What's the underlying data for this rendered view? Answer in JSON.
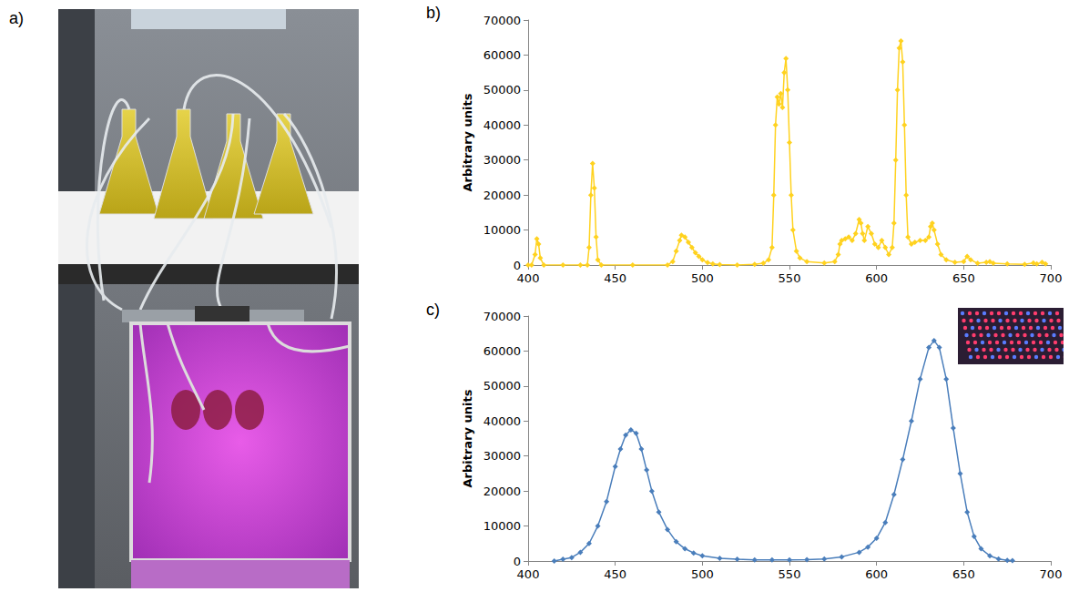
{
  "photo": {
    "panel": "a)"
  },
  "chart_data": [
    {
      "type": "line",
      "panel": "b)",
      "ylabel": "Arbitrary units",
      "color": "#ffd21f",
      "marker": "diamond",
      "xlim": [
        400,
        700
      ],
      "xticks": [
        400,
        450,
        500,
        550,
        600,
        650,
        700
      ],
      "ylim": [
        0,
        70000
      ],
      "yticks": [
        0,
        10000,
        20000,
        30000,
        40000,
        50000,
        60000,
        70000
      ],
      "grid": false,
      "x": [
        400,
        402,
        404,
        405,
        406,
        407,
        409,
        420,
        430,
        434,
        435,
        436,
        437,
        438,
        439,
        440,
        442,
        460,
        480,
        483,
        485,
        487,
        488,
        490,
        492,
        494,
        496,
        498,
        500,
        503,
        506,
        510,
        520,
        530,
        535,
        538,
        540,
        541,
        542,
        543,
        544,
        545,
        546,
        547,
        548,
        549,
        550,
        551,
        552,
        554,
        556,
        560,
        570,
        576,
        578,
        579,
        580,
        582,
        584,
        586,
        588,
        590,
        591,
        592,
        593,
        595,
        597,
        599,
        601,
        603,
        605,
        607,
        609,
        610,
        611,
        612,
        613,
        614,
        615,
        616,
        617,
        618,
        620,
        622,
        625,
        628,
        630,
        631,
        632,
        633,
        635,
        637,
        640,
        645,
        650,
        652,
        654,
        658,
        663,
        665,
        667,
        675,
        685,
        690,
        692,
        695,
        697
      ],
      "values": [
        0,
        0,
        3000,
        7500,
        6000,
        2000,
        0,
        0,
        0,
        0,
        5000,
        20000,
        29000,
        22000,
        8000,
        1500,
        0,
        0,
        0,
        1000,
        4000,
        7000,
        8500,
        8000,
        6500,
        5000,
        3500,
        2500,
        1500,
        700,
        300,
        100,
        0,
        200,
        500,
        1500,
        5000,
        20000,
        40000,
        48000,
        46000,
        49000,
        45000,
        55000,
        59000,
        50000,
        35000,
        20000,
        10000,
        4000,
        2000,
        1000,
        600,
        1000,
        3000,
        6000,
        7000,
        7500,
        8000,
        7000,
        9000,
        13000,
        12000,
        9000,
        7000,
        11000,
        9000,
        6000,
        5000,
        7000,
        5000,
        3000,
        5000,
        12000,
        30000,
        50000,
        62000,
        64000,
        58000,
        40000,
        20000,
        8000,
        6000,
        6500,
        7000,
        7000,
        8000,
        11000,
        12000,
        10000,
        6000,
        3000,
        1500,
        800,
        1000,
        2500,
        1500,
        500,
        800,
        1000,
        500,
        300,
        200,
        600,
        300,
        800,
        300
      ]
    },
    {
      "type": "line",
      "panel": "c)",
      "ylabel": "Arbitrary units",
      "color": "#4a7ebb",
      "marker": "diamond",
      "xlim": [
        400,
        700
      ],
      "xticks": [
        400,
        450,
        500,
        550,
        600,
        650,
        700
      ],
      "ylim": [
        0,
        70000
      ],
      "yticks": [
        0,
        10000,
        20000,
        30000,
        40000,
        50000,
        60000,
        70000
      ],
      "grid": false,
      "x": [
        415,
        420,
        425,
        430,
        435,
        440,
        445,
        450,
        453,
        456,
        459,
        462,
        465,
        468,
        471,
        475,
        480,
        485,
        490,
        495,
        500,
        510,
        520,
        530,
        540,
        550,
        560,
        570,
        580,
        590,
        595,
        600,
        605,
        610,
        615,
        620,
        625,
        630,
        633,
        636,
        640,
        644,
        648,
        652,
        656,
        660,
        665,
        670,
        675,
        678
      ],
      "values": [
        0,
        500,
        1000,
        2500,
        5000,
        10000,
        17000,
        27000,
        32000,
        36000,
        37500,
        36500,
        32000,
        26000,
        20000,
        14000,
        9000,
        5500,
        3500,
        2300,
        1500,
        800,
        500,
        300,
        300,
        300,
        400,
        600,
        1200,
        2500,
        4000,
        6500,
        11000,
        19000,
        29000,
        40000,
        52000,
        61000,
        63000,
        61000,
        52000,
        38000,
        25000,
        14000,
        7000,
        3500,
        1500,
        600,
        200,
        100
      ]
    }
  ]
}
